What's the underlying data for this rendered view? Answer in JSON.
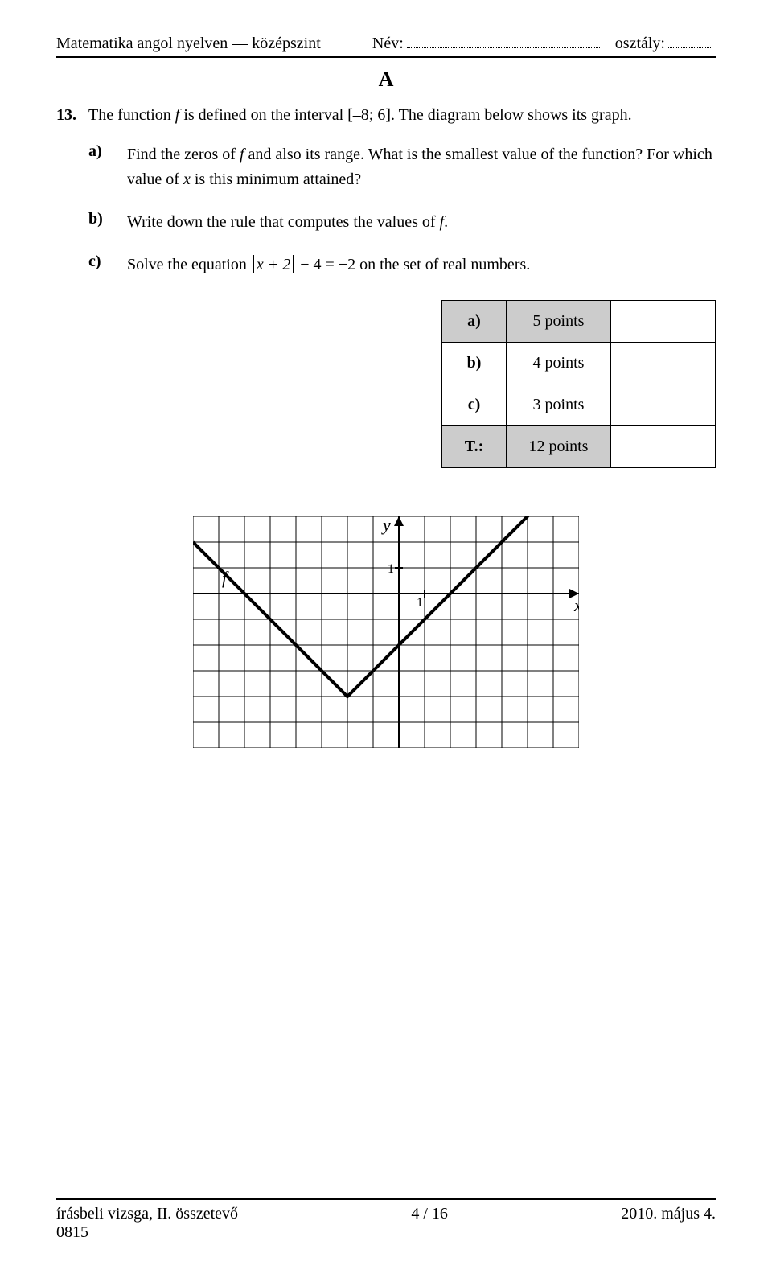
{
  "header": {
    "subject": "Matematika angol nyelven — középszint",
    "name_label": "Név:",
    "class_label": "osztály:"
  },
  "section_letter": "A",
  "question": {
    "number": "13.",
    "intro_1": "The function ",
    "intro_fvar": "f",
    "intro_2": " is defined on the interval [–8; 6]. The diagram below shows its graph.",
    "parts": {
      "a": {
        "label": "a)",
        "t1": "Find the zeros of ",
        "fvar": "f",
        "t2": " and also its range. What is the smallest value of the function? For which value of ",
        "xvar": "x",
        "t3": " is this minimum attained?"
      },
      "b": {
        "label": "b)",
        "t1": "Write down the rule that computes the values of ",
        "fvar": "f",
        "t2": "."
      },
      "c": {
        "label": "c)",
        "t1": "Solve the equation ",
        "eq_lhs1": "x + 2",
        "eq_mid": " − 4 = −2",
        "t2": " on the set of real numbers."
      }
    }
  },
  "points_table": {
    "rows": [
      {
        "label": "a)",
        "points": "5 points",
        "shaded": true
      },
      {
        "label": "b)",
        "points": "4 points",
        "shaded": false
      },
      {
        "label": "c)",
        "points": "3 points",
        "shaded": false
      },
      {
        "label": "T.:",
        "points": "12 points",
        "shaded": true
      }
    ]
  },
  "graph": {
    "cell": 32,
    "cols": 15,
    "rows": 9,
    "origin_col": 8,
    "origin_row": 3,
    "grid_color": "#000000",
    "grid_width": 1,
    "axis_width": 2,
    "curve_width": 4,
    "curve": [
      {
        "x": -8,
        "y": 2
      },
      {
        "x": -2,
        "y": -4
      },
      {
        "x": 6,
        "y": 4
      }
    ],
    "labels": {
      "y": "y",
      "x": "x",
      "f": "f",
      "tick_y": "1",
      "tick_x": "1"
    }
  },
  "footer": {
    "left1": "írásbeli vizsga, II. összetevő",
    "left2": "0815",
    "center": "4 / 16",
    "right": "2010. május 4."
  }
}
